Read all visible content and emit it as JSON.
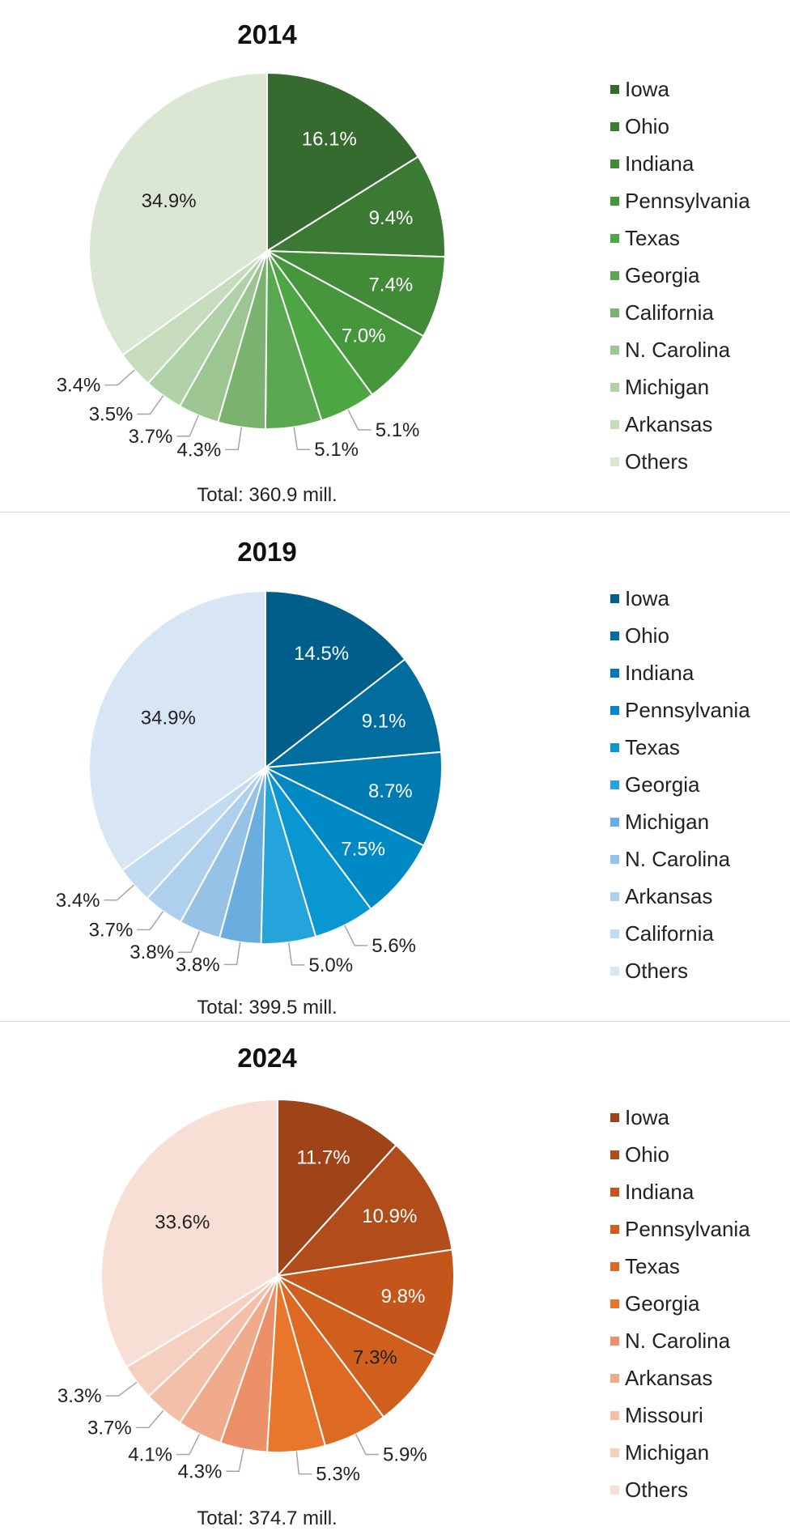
{
  "chart_data": [
    {
      "type": "pie",
      "title": "2014",
      "total": "Total: 360.9 mill.",
      "slices": [
        {
          "label": "Iowa",
          "value": 16.1,
          "text": "16.1%",
          "color": "#356b2e"
        },
        {
          "label": "Ohio",
          "value": 9.4,
          "text": "9.4%",
          "color": "#3b7a33"
        },
        {
          "label": "Indiana",
          "value": 7.4,
          "text": "7.4%",
          "color": "#418a38"
        },
        {
          "label": "Pennsylvania",
          "value": 7.0,
          "text": "7.0%",
          "color": "#46973c"
        },
        {
          "label": "Texas",
          "value": 5.1,
          "text": "5.1%",
          "color": "#4ca642"
        },
        {
          "label": "Georgia",
          "value": 5.1,
          "text": "5.1%",
          "color": "#5aa84f"
        },
        {
          "label": "California",
          "value": 4.3,
          "text": "4.3%",
          "color": "#7ab26f"
        },
        {
          "label": "N. Carolina",
          "value": 3.7,
          "text": "3.7%",
          "color": "#9cc591"
        },
        {
          "label": "Michigan",
          "value": 3.5,
          "text": "3.5%",
          "color": "#b1d1a8"
        },
        {
          "label": "Arkansas",
          "value": 3.4,
          "text": "3.4%",
          "color": "#c6dcbd"
        },
        {
          "label": "Others",
          "value": 34.9,
          "text": "34.9%",
          "color": "#dbe7d4"
        }
      ]
    },
    {
      "type": "pie",
      "title": "2019",
      "total": "Total: 399.5 mill.",
      "slices": [
        {
          "label": "Iowa",
          "value": 14.5,
          "text": "14.5%",
          "color": "#005f8a"
        },
        {
          "label": "Ohio",
          "value": 9.1,
          "text": "9.1%",
          "color": "#006d9e"
        },
        {
          "label": "Indiana",
          "value": 8.7,
          "text": "8.7%",
          "color": "#007bb2"
        },
        {
          "label": "Pennsylvania",
          "value": 7.5,
          "text": "7.5%",
          "color": "#0089c4"
        },
        {
          "label": "Texas",
          "value": 5.6,
          "text": "5.6%",
          "color": "#0897d1"
        },
        {
          "label": "Georgia",
          "value": 5.0,
          "text": "5.0%",
          "color": "#25a3db"
        },
        {
          "label": "Michigan",
          "value": 3.8,
          "text": "3.8%",
          "color": "#6aaedf"
        },
        {
          "label": "N. Carolina",
          "value": 3.8,
          "text": "3.8%",
          "color": "#96c2e6"
        },
        {
          "label": "Arkansas",
          "value": 3.7,
          "text": "3.7%",
          "color": "#afd0ec"
        },
        {
          "label": "California",
          "value": 3.4,
          "text": "3.4%",
          "color": "#c3dbf0"
        },
        {
          "label": "Others",
          "value": 34.9,
          "text": "34.9%",
          "color": "#d7e5f4"
        }
      ]
    },
    {
      "type": "pie",
      "title": "2024",
      "total": "Total: 374.7 mill.",
      "slices": [
        {
          "label": "Iowa",
          "value": 11.7,
          "text": "11.7%",
          "color": "#9e4418"
        },
        {
          "label": "Ohio",
          "value": 10.9,
          "text": "10.9%",
          "color": "#b14d1a"
        },
        {
          "label": "Indiana",
          "value": 9.8,
          "text": "9.8%",
          "color": "#c4561c"
        },
        {
          "label": "Pennsylvania",
          "value": 7.3,
          "text": "7.3%",
          "color": "#d05f1e"
        },
        {
          "label": "Texas",
          "value": 5.9,
          "text": "5.9%",
          "color": "#dd6922"
        },
        {
          "label": "Georgia",
          "value": 5.3,
          "text": "5.3%",
          "color": "#e8762b"
        },
        {
          "label": "N. Carolina",
          "value": 4.3,
          "text": "4.3%",
          "color": "#eb9068"
        },
        {
          "label": "Arkansas",
          "value": 4.1,
          "text": "4.1%",
          "color": "#f0ab8c"
        },
        {
          "label": "Missouri",
          "value": 3.7,
          "text": "3.7%",
          "color": "#f3bfa8"
        },
        {
          "label": "Michigan",
          "value": 3.3,
          "text": "3.3%",
          "color": "#f5d0c0"
        },
        {
          "label": "Others",
          "value": 33.6,
          "text": "33.6%",
          "color": "#f7dfd5"
        }
      ]
    }
  ]
}
